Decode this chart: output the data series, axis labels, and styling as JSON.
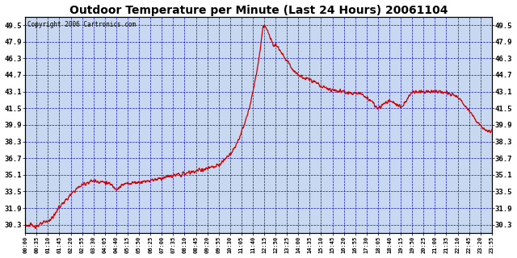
{
  "title": "Outdoor Temperature per Minute (Last 24 Hours) 20061104",
  "copyright": "Copyright 2006 Cartronics.com",
  "background_color": "#FFFFFF",
  "plot_bg_color": "#C8D8F0",
  "grid_color": "#0000BB",
  "line_color": "#CC0000",
  "yticks": [
    30.3,
    31.9,
    33.5,
    35.1,
    36.7,
    38.3,
    39.9,
    41.5,
    43.1,
    44.7,
    46.3,
    47.9,
    49.5
  ],
  "ymin": 29.5,
  "ymax": 50.3,
  "xtick_labels": [
    "00:00",
    "00:35",
    "01:10",
    "01:45",
    "02:20",
    "02:55",
    "03:30",
    "04:05",
    "04:40",
    "05:15",
    "05:50",
    "06:25",
    "07:00",
    "07:35",
    "08:10",
    "08:45",
    "09:20",
    "09:55",
    "10:30",
    "11:05",
    "11:40",
    "12:15",
    "12:50",
    "13:25",
    "14:00",
    "14:35",
    "15:10",
    "15:45",
    "16:20",
    "16:55",
    "17:30",
    "18:05",
    "18:40",
    "19:15",
    "19:50",
    "20:25",
    "21:00",
    "21:35",
    "22:10",
    "22:45",
    "23:20",
    "23:55"
  ],
  "x_values": [
    0,
    35,
    70,
    105,
    140,
    175,
    210,
    245,
    280,
    315,
    350,
    385,
    420,
    455,
    490,
    525,
    560,
    595,
    630,
    665,
    700,
    735,
    770,
    805,
    840,
    875,
    910,
    945,
    980,
    1015,
    1050,
    1085,
    1120,
    1155,
    1190,
    1225,
    1260,
    1295,
    1330,
    1365,
    1400,
    1435
  ],
  "key_points_x": [
    0,
    30,
    60,
    90,
    100,
    130,
    160,
    180,
    210,
    240,
    260,
    270,
    280,
    300,
    320,
    350,
    390,
    420,
    455,
    490,
    530,
    560,
    595,
    620,
    640,
    660,
    680,
    700,
    720,
    735,
    750,
    760,
    775,
    800,
    840,
    880,
    920,
    960,
    1000,
    1040,
    1050,
    1070,
    1085,
    1100,
    1120,
    1140,
    1155,
    1190,
    1225,
    1260,
    1295,
    1330,
    1360,
    1390,
    1410,
    1435
  ],
  "key_points_y": [
    30.3,
    30.2,
    30.5,
    31.2,
    31.8,
    32.8,
    33.8,
    34.2,
    34.5,
    34.4,
    34.2,
    34.0,
    33.8,
    34.1,
    34.3,
    34.4,
    34.6,
    34.8,
    35.0,
    35.2,
    35.5,
    35.7,
    36.0,
    36.8,
    37.5,
    38.8,
    40.5,
    43.0,
    46.5,
    49.5,
    48.5,
    47.9,
    47.5,
    46.3,
    44.7,
    44.2,
    43.5,
    43.2,
    43.0,
    42.8,
    42.5,
    42.0,
    41.5,
    41.8,
    42.2,
    41.9,
    41.6,
    43.0,
    43.1,
    43.1,
    43.0,
    42.5,
    41.5,
    40.2,
    39.5,
    39.2
  ]
}
